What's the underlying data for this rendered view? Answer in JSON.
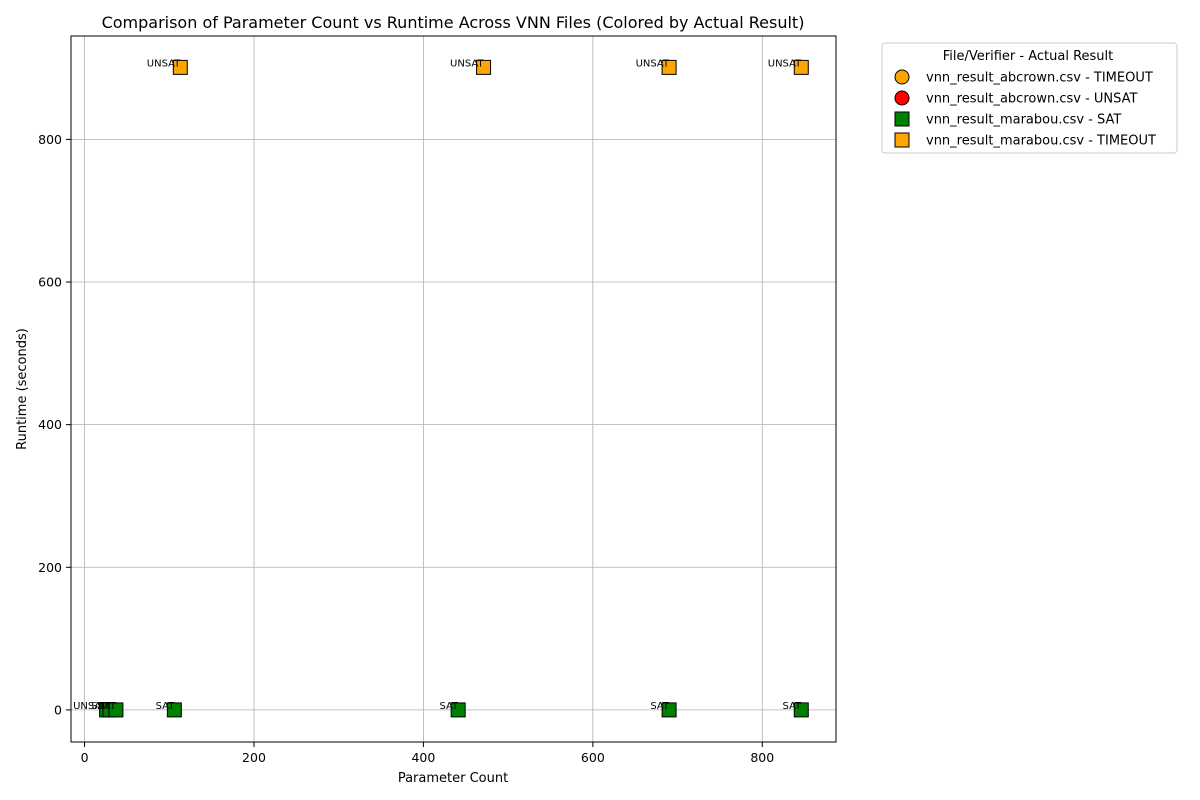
{
  "chart_data": {
    "type": "scatter",
    "title": "Comparison of Parameter Count vs Runtime Across VNN Files (Colored by Actual Result)",
    "xlabel": "Parameter Count",
    "ylabel": "Runtime (seconds)",
    "xlim": [
      -16,
      887
    ],
    "ylim": [
      -45,
      945
    ],
    "xticks": [
      0,
      200,
      400,
      600,
      800
    ],
    "yticks": [
      0,
      200,
      400,
      600,
      800
    ],
    "grid": true,
    "legend_title": "File/Verifier - Actual Result",
    "legend_position": "outside-top-right",
    "series": [
      {
        "name": "vnn_result_abcrown.csv - TIMEOUT",
        "marker": "circle",
        "color": "#ffa500",
        "points": []
      },
      {
        "name": "vnn_result_abcrown.csv - UNSAT",
        "marker": "circle",
        "color": "#ff0000",
        "points": []
      },
      {
        "name": "vnn_result_marabou.csv - SAT",
        "marker": "square",
        "color": "#008000",
        "points": [
          {
            "x": 26,
            "y": 0,
            "label": "UNSAT"
          },
          {
            "x": 30,
            "y": 0,
            "label": "SAT"
          },
          {
            "x": 37,
            "y": 0,
            "label": "SAT"
          },
          {
            "x": 106,
            "y": 0,
            "label": "SAT"
          },
          {
            "x": 441,
            "y": 0,
            "label": "SAT"
          },
          {
            "x": 690,
            "y": 0,
            "label": "SAT"
          },
          {
            "x": 846,
            "y": 0,
            "label": "SAT"
          }
        ]
      },
      {
        "name": "vnn_result_marabou.csv - TIMEOUT",
        "marker": "square",
        "color": "#ffa500",
        "points": [
          {
            "x": 113,
            "y": 901,
            "label": "UNSAT"
          },
          {
            "x": 471,
            "y": 901,
            "label": "UNSAT"
          },
          {
            "x": 690,
            "y": 901,
            "label": "UNSAT"
          },
          {
            "x": 846,
            "y": 901,
            "label": "UNSAT"
          }
        ]
      }
    ]
  }
}
